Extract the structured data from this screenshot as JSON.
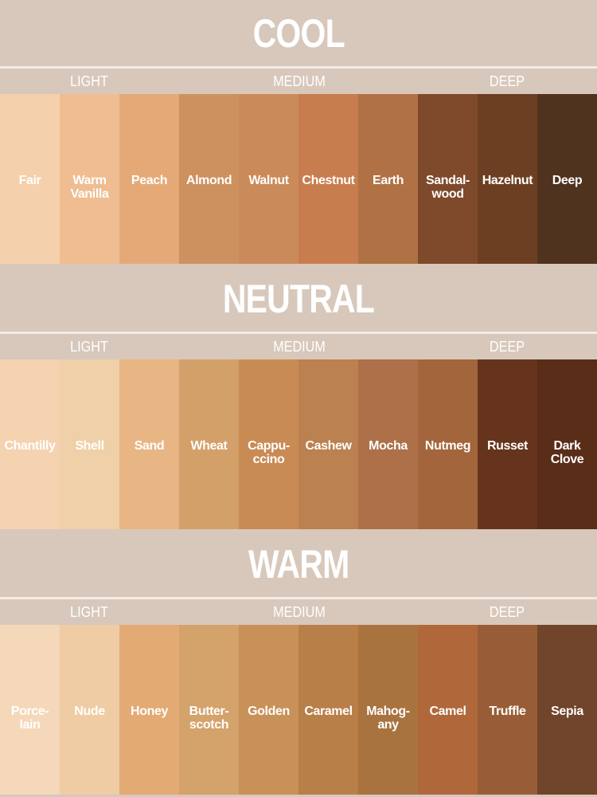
{
  "background": "#d8c8bb",
  "tiers": [
    "LIGHT",
    "MEDIUM",
    "DEEP"
  ],
  "sections": [
    {
      "title": "COOL",
      "swatches": [
        {
          "name": "Fair",
          "color": "#f5d0ad"
        },
        {
          "name": "Warm\nVanilla",
          "color": "#efbd91"
        },
        {
          "name": "Peach",
          "color": "#e5a978"
        },
        {
          "name": "Almond",
          "color": "#cd915f"
        },
        {
          "name": "Walnut",
          "color": "#cb8a5a"
        },
        {
          "name": "Chestnut",
          "color": "#c87d4e"
        },
        {
          "name": "Earth",
          "color": "#b07244"
        },
        {
          "name": "Sandal-\nwood",
          "color": "#7e4a2b"
        },
        {
          "name": "Hazelnut",
          "color": "#6d3f22"
        },
        {
          "name": "Deep",
          "color": "#4f331e"
        }
      ]
    },
    {
      "title": "NEUTRAL",
      "swatches": [
        {
          "name": "Chantilly",
          "color": "#f5d3b1"
        },
        {
          "name": "Shell",
          "color": "#efd0a8"
        },
        {
          "name": "Sand",
          "color": "#e8b684"
        },
        {
          "name": "Wheat",
          "color": "#d4a06a"
        },
        {
          "name": "Cappu-\nccino",
          "color": "#c98b54"
        },
        {
          "name": "Cashew",
          "color": "#bb8150"
        },
        {
          "name": "Mocha",
          "color": "#ad7048"
        },
        {
          "name": "Nutmeg",
          "color": "#a3653b"
        },
        {
          "name": "Russet",
          "color": "#66341c"
        },
        {
          "name": "Dark\nClove",
          "color": "#5a2d18"
        }
      ]
    },
    {
      "title": "WARM",
      "swatches": [
        {
          "name": "Porce-\nlain",
          "color": "#f5d8ba"
        },
        {
          "name": "Nude",
          "color": "#efcca4"
        },
        {
          "name": "Honey",
          "color": "#e3aa74"
        },
        {
          "name": "Butter-\nscotch",
          "color": "#d4a26b"
        },
        {
          "name": "Golden",
          "color": "#c89158"
        },
        {
          "name": "Caramel",
          "color": "#b87f48"
        },
        {
          "name": "Mahog-\nany",
          "color": "#a97340"
        },
        {
          "name": "Camel",
          "color": "#b0683a"
        },
        {
          "name": "Truffle",
          "color": "#985d37"
        },
        {
          "name": "Sepia",
          "color": "#71452b"
        }
      ]
    }
  ]
}
